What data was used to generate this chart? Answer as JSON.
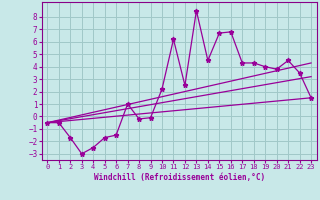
{
  "xlabel": "Windchill (Refroidissement éolien,°C)",
  "bg_color": "#c8e8e8",
  "grid_color": "#a0c8c8",
  "line_color": "#990099",
  "spine_color": "#880088",
  "x_data": [
    0,
    1,
    2,
    3,
    4,
    5,
    6,
    7,
    8,
    9,
    10,
    11,
    12,
    13,
    14,
    15,
    16,
    17,
    18,
    19,
    20,
    21,
    22,
    23
  ],
  "y_main": [
    -0.5,
    -0.5,
    -1.7,
    -3.0,
    -2.5,
    -1.7,
    -1.5,
    1.0,
    -0.2,
    -0.1,
    2.2,
    6.2,
    2.5,
    8.5,
    4.5,
    6.7,
    6.8,
    4.3,
    4.3,
    4.0,
    3.8,
    4.5,
    3.5,
    1.5
  ],
  "line1_x": [
    0,
    23
  ],
  "line1_y": [
    -0.5,
    4.3
  ],
  "line2_x": [
    0,
    23
  ],
  "line2_y": [
    -0.5,
    1.5
  ],
  "line3_x": [
    0,
    23
  ],
  "line3_y": [
    -0.5,
    3.2
  ],
  "ylim": [
    -3.5,
    9.2
  ],
  "xlim": [
    -0.5,
    23.5
  ],
  "yticks": [
    -3,
    -2,
    -1,
    0,
    1,
    2,
    3,
    4,
    5,
    6,
    7,
    8
  ],
  "xticks": [
    0,
    1,
    2,
    3,
    4,
    5,
    6,
    7,
    8,
    9,
    10,
    11,
    12,
    13,
    14,
    15,
    16,
    17,
    18,
    19,
    20,
    21,
    22,
    23
  ]
}
